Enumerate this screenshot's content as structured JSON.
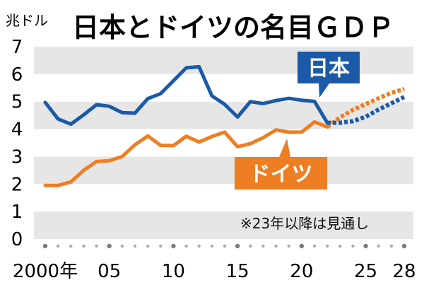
{
  "chart_data": {
    "type": "line",
    "title": "日本とドイツの名目ＧＤＰ",
    "ylabel": "兆ドル",
    "ylim": [
      0,
      7
    ],
    "yticks": [
      "0",
      "1",
      "2",
      "3",
      "4",
      "5",
      "6",
      "7"
    ],
    "xlim": [
      2000,
      2028
    ],
    "xticks": [
      {
        "x": 2000,
        "label": "2000年"
      },
      {
        "x": 2005,
        "label": "05"
      },
      {
        "x": 2010,
        "label": "10"
      },
      {
        "x": 2015,
        "label": "15"
      },
      {
        "x": 2020,
        "label": "20"
      },
      {
        "x": 2025,
        "label": "25"
      },
      {
        "x": 2028,
        "label": "28"
      }
    ],
    "grid": "alternating horizontal bands",
    "note": "※23年以降は見通し",
    "forecast_from": 2022,
    "series": [
      {
        "name": "日本",
        "color": "#1b5aa6",
        "x": [
          2000,
          2001,
          2002,
          2003,
          2004,
          2005,
          2006,
          2007,
          2008,
          2009,
          2010,
          2011,
          2012,
          2013,
          2014,
          2015,
          2016,
          2017,
          2018,
          2019,
          2020,
          2021,
          2022,
          2023,
          2024,
          2025,
          2026,
          2027,
          2028
        ],
        "values": [
          4.97,
          4.37,
          4.18,
          4.52,
          4.89,
          4.83,
          4.6,
          4.58,
          5.11,
          5.29,
          5.76,
          6.23,
          6.27,
          5.21,
          4.9,
          4.44,
          5.0,
          4.93,
          5.04,
          5.12,
          5.05,
          5.01,
          4.23,
          4.23,
          4.29,
          4.45,
          4.71,
          4.94,
          5.17
        ]
      },
      {
        "name": "ドイツ",
        "color": "#ee7e22",
        "x": [
          2000,
          2001,
          2002,
          2003,
          2004,
          2005,
          2006,
          2007,
          2008,
          2009,
          2010,
          2011,
          2012,
          2013,
          2014,
          2015,
          2016,
          2017,
          2018,
          2019,
          2020,
          2021,
          2022,
          2023,
          2024,
          2025,
          2026,
          2027,
          2028
        ],
        "values": [
          1.95,
          1.95,
          2.08,
          2.5,
          2.82,
          2.85,
          3.0,
          3.43,
          3.75,
          3.41,
          3.4,
          3.74,
          3.53,
          3.73,
          3.89,
          3.36,
          3.47,
          3.69,
          3.97,
          3.89,
          3.89,
          4.26,
          4.08,
          4.43,
          4.7,
          4.91,
          5.12,
          5.32,
          5.46
        ]
      }
    ],
    "callouts": [
      {
        "text": "日本",
        "color": "#1b5aa6"
      },
      {
        "text": "ドイツ",
        "color": "#ee7e22"
      }
    ]
  }
}
